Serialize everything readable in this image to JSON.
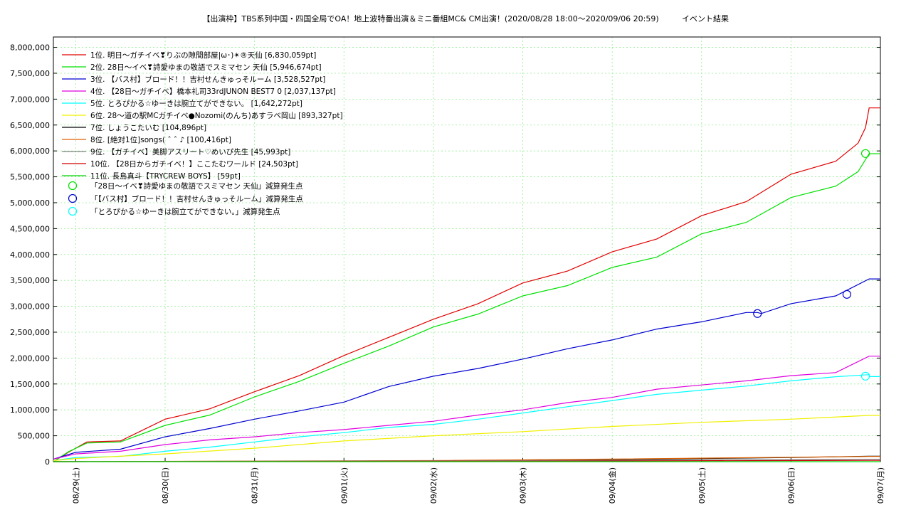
{
  "chart_data": {
    "type": "line",
    "title": "【出演枠】TBS系列中国・四国全局でOA！地上波特番出演＆ミニ番組MC& CM出演！(2020/08/28 18:00～2020/09/06 20:59)",
    "subtitle": "イベント結果",
    "xlabel": "",
    "ylabel": "",
    "ylim": [
      0,
      8200000
    ],
    "x_range": [
      "2020/08/28 18:00",
      "2020/09/07"
    ],
    "grid": true,
    "legend_position": "top-left",
    "y_ticks": [
      "0",
      "500,000",
      "1,000,000",
      "1,500,000",
      "2,000,000",
      "2,500,000",
      "3,000,000",
      "3,500,000",
      "4,000,000",
      "4,500,000",
      "5,000,000",
      "5,500,000",
      "6,000,000",
      "6,500,000",
      "7,000,000",
      "7,500,000",
      "8,000,000"
    ],
    "x_ticks": [
      "08/29(土)",
      "08/30(日)",
      "08/31(月)",
      "09/01(火)",
      "09/02(水)",
      "09/03(木)",
      "09/04(金)",
      "09/05(土)",
      "09/06(日)",
      "09/07(月)"
    ],
    "series": [
      {
        "name": "1位. 明日〜ガチイベ❣りぶの隙間部屋|ω･)✴®天仙 [6,830,059pt]",
        "color": "#e00000",
        "final": 6830059,
        "points": [
          [
            "2020/08/28 18:00",
            0
          ],
          [
            "2020/08/28 22:00",
            180000
          ],
          [
            "2020/08/29 03:00",
            380000
          ],
          [
            "2020/08/29 12:00",
            400000
          ],
          [
            "2020/08/30 00:00",
            820000
          ],
          [
            "2020/08/30 12:00",
            1020000
          ],
          [
            "2020/08/31 00:00",
            1350000
          ],
          [
            "2020/08/31 12:00",
            1660000
          ],
          [
            "2020/09/01 00:00",
            2050000
          ],
          [
            "2020/09/01 12:00",
            2400000
          ],
          [
            "2020/09/02 00:00",
            2750000
          ],
          [
            "2020/09/02 12:00",
            3050000
          ],
          [
            "2020/09/03 00:00",
            3450000
          ],
          [
            "2020/09/03 12:00",
            3680000
          ],
          [
            "2020/09/04 00:00",
            4050000
          ],
          [
            "2020/09/04 12:00",
            4300000
          ],
          [
            "2020/09/05 00:00",
            4750000
          ],
          [
            "2020/09/05 12:00",
            5020000
          ],
          [
            "2020/09/06 00:00",
            5550000
          ],
          [
            "2020/09/06 12:00",
            5800000
          ],
          [
            "2020/09/06 18:00",
            6150000
          ],
          [
            "2020/09/06 20:00",
            6450000
          ],
          [
            "2020/09/06 20:59",
            6830059
          ],
          [
            "2020/09/07 00:00",
            6830059
          ]
        ]
      },
      {
        "name": "2位. 28日〜イベ❣詩愛ゆまの敬語でスミマセン 天仙 [5,946,674pt]",
        "color": "#00e000",
        "final": 5946674,
        "points": [
          [
            "2020/08/28 18:00",
            0
          ],
          [
            "2020/08/28 22:00",
            190000
          ],
          [
            "2020/08/29 03:00",
            360000
          ],
          [
            "2020/08/29 12:00",
            380000
          ],
          [
            "2020/08/30 00:00",
            700000
          ],
          [
            "2020/08/30 12:00",
            900000
          ],
          [
            "2020/08/31 00:00",
            1250000
          ],
          [
            "2020/08/31 12:00",
            1550000
          ],
          [
            "2020/09/01 00:00",
            1900000
          ],
          [
            "2020/09/01 12:00",
            2230000
          ],
          [
            "2020/09/02 00:00",
            2600000
          ],
          [
            "2020/09/02 12:00",
            2850000
          ],
          [
            "2020/09/03 00:00",
            3200000
          ],
          [
            "2020/09/03 12:00",
            3400000
          ],
          [
            "2020/09/04 00:00",
            3750000
          ],
          [
            "2020/09/04 12:00",
            3950000
          ],
          [
            "2020/09/05 00:00",
            4400000
          ],
          [
            "2020/09/05 12:00",
            4620000
          ],
          [
            "2020/09/06 00:00",
            5100000
          ],
          [
            "2020/09/06 12:00",
            5320000
          ],
          [
            "2020/09/06 18:00",
            5600000
          ],
          [
            "2020/09/06 20:59",
            5946674
          ],
          [
            "2020/09/07 00:00",
            5946674
          ]
        ]
      },
      {
        "name": "3位. 【バス村】ブロード！！吉村せんきゅっそルーム [3,528,527pt]",
        "color": "#0000d0",
        "final": 3528527,
        "points": [
          [
            "2020/08/28 18:00",
            50000
          ],
          [
            "2020/08/29 00:00",
            180000
          ],
          [
            "2020/08/29 12:00",
            240000
          ],
          [
            "2020/08/30 00:00",
            480000
          ],
          [
            "2020/08/30 12:00",
            640000
          ],
          [
            "2020/08/31 00:00",
            820000
          ],
          [
            "2020/08/31 12:00",
            980000
          ],
          [
            "2020/09/01 00:00",
            1150000
          ],
          [
            "2020/09/01 12:00",
            1450000
          ],
          [
            "2020/09/02 00:00",
            1650000
          ],
          [
            "2020/09/02 12:00",
            1800000
          ],
          [
            "2020/09/03 00:00",
            1980000
          ],
          [
            "2020/09/03 12:00",
            2180000
          ],
          [
            "2020/09/04 00:00",
            2350000
          ],
          [
            "2020/09/04 12:00",
            2560000
          ],
          [
            "2020/09/05 00:00",
            2700000
          ],
          [
            "2020/09/05 12:00",
            2880000
          ],
          [
            "2020/09/05 15:00",
            2880000
          ],
          [
            "2020/09/05 16:00",
            2860000
          ],
          [
            "2020/09/06 00:00",
            3050000
          ],
          [
            "2020/09/06 12:00",
            3200000
          ],
          [
            "2020/09/06 20:59",
            3528527
          ],
          [
            "2020/09/07 00:00",
            3528527
          ]
        ]
      },
      {
        "name": "4位. 【28日〜ガチイベ】橋本礼司33rdJUNON BEST7 0 [2,037,137pt]",
        "color": "#e000e0",
        "final": 2037137,
        "points": [
          [
            "2020/08/28 18:00",
            50000
          ],
          [
            "2020/08/29 00:00",
            150000
          ],
          [
            "2020/08/29 12:00",
            200000
          ],
          [
            "2020/08/30 00:00",
            330000
          ],
          [
            "2020/08/30 12:00",
            420000
          ],
          [
            "2020/08/31 00:00",
            480000
          ],
          [
            "2020/08/31 12:00",
            560000
          ],
          [
            "2020/09/01 00:00",
            620000
          ],
          [
            "2020/09/01 12:00",
            700000
          ],
          [
            "2020/09/02 00:00",
            780000
          ],
          [
            "2020/09/02 12:00",
            900000
          ],
          [
            "2020/09/03 00:00",
            1000000
          ],
          [
            "2020/09/03 12:00",
            1140000
          ],
          [
            "2020/09/04 00:00",
            1240000
          ],
          [
            "2020/09/04 12:00",
            1400000
          ],
          [
            "2020/09/05 00:00",
            1480000
          ],
          [
            "2020/09/05 12:00",
            1560000
          ],
          [
            "2020/09/06 00:00",
            1660000
          ],
          [
            "2020/09/06 12:00",
            1720000
          ],
          [
            "2020/09/06 20:59",
            2037137
          ],
          [
            "2020/09/07 00:00",
            2037137
          ]
        ]
      },
      {
        "name": "5位. とろぴかる☆ゆーきは腕立てができない。 [1,642,272pt]",
        "color": "#00ffff",
        "final": 1642272,
        "points": [
          [
            "2020/08/28 18:00",
            20000
          ],
          [
            "2020/08/29 00:00",
            80000
          ],
          [
            "2020/08/29 12:00",
            100000
          ],
          [
            "2020/08/30 00:00",
            200000
          ],
          [
            "2020/08/30 12:00",
            280000
          ],
          [
            "2020/08/31 00:00",
            380000
          ],
          [
            "2020/08/31 12:00",
            480000
          ],
          [
            "2020/09/01 00:00",
            560000
          ],
          [
            "2020/09/01 12:00",
            660000
          ],
          [
            "2020/09/02 00:00",
            720000
          ],
          [
            "2020/09/02 12:00",
            820000
          ],
          [
            "2020/09/03 00:00",
            940000
          ],
          [
            "2020/09/03 12:00",
            1060000
          ],
          [
            "2020/09/04 00:00",
            1180000
          ],
          [
            "2020/09/04 12:00",
            1300000
          ],
          [
            "2020/09/05 00:00",
            1380000
          ],
          [
            "2020/09/05 12:00",
            1460000
          ],
          [
            "2020/09/06 00:00",
            1560000
          ],
          [
            "2020/09/06 12:00",
            1640000
          ],
          [
            "2020/09/06 20:59",
            1680000
          ],
          [
            "2020/09/06 21:00",
            1642272
          ],
          [
            "2020/09/07 00:00",
            1642272
          ]
        ]
      },
      {
        "name": "6位. 28〜道の駅MCガチイベ●Nozomi(のんち)あすラベ岡山 [893,327pt]",
        "color": "#f0f000",
        "final": 893327,
        "points": [
          [
            "2020/08/28 18:00",
            20000
          ],
          [
            "2020/08/29 00:00",
            60000
          ],
          [
            "2020/08/30 00:00",
            150000
          ],
          [
            "2020/08/31 00:00",
            260000
          ],
          [
            "2020/09/01 00:00",
            400000
          ],
          [
            "2020/09/02 00:00",
            500000
          ],
          [
            "2020/09/03 00:00",
            580000
          ],
          [
            "2020/09/04 00:00",
            680000
          ],
          [
            "2020/09/05 00:00",
            760000
          ],
          [
            "2020/09/06 00:00",
            820000
          ],
          [
            "2020/09/06 20:59",
            893327
          ],
          [
            "2020/09/07 00:00",
            893327
          ]
        ]
      },
      {
        "name": "7位. しょうこたいむ [104,896pt]",
        "color": "#000000",
        "final": 104896,
        "points": [
          [
            "2020/08/28 18:00",
            0
          ],
          [
            "2020/09/02 00:00",
            10000
          ],
          [
            "2020/09/04 00:00",
            40000
          ],
          [
            "2020/09/06 00:00",
            80000
          ],
          [
            "2020/09/06 20:59",
            104896
          ],
          [
            "2020/09/07 00:00",
            104896
          ]
        ]
      },
      {
        "name": "8位. [絶対1位]songs( ˆ ˆ ♪ [100,416pt]",
        "color": "#e06000",
        "final": 100416,
        "points": [
          [
            "2020/08/28 18:00",
            0
          ],
          [
            "2020/09/02 00:00",
            20000
          ],
          [
            "2020/09/04 00:00",
            50000
          ],
          [
            "2020/09/06 00:00",
            85000
          ],
          [
            "2020/09/06 20:59",
            100416
          ],
          [
            "2020/09/07 00:00",
            100416
          ]
        ]
      },
      {
        "name": "9位. 【ガチイベ】美脚アスリート♡めいぴ先生 [45,993pt]",
        "color": "#808080",
        "final": 45993,
        "points": [
          [
            "2020/08/28 18:00",
            0
          ],
          [
            "2020/09/02 00:00",
            15000
          ],
          [
            "2020/09/06 20:59",
            45993
          ],
          [
            "2020/09/07 00:00",
            45993
          ]
        ]
      },
      {
        "name": "10位. 【28日からガチイベ！】ここたむワールド [24,503pt]",
        "color": "#d00000",
        "final": 24503,
        "points": [
          [
            "2020/08/28 18:00",
            0
          ],
          [
            "2020/09/03 00:00",
            10000
          ],
          [
            "2020/09/06 20:59",
            24503
          ],
          [
            "2020/09/07 00:00",
            24503
          ]
        ]
      },
      {
        "name": "11位. 長島真斗【TRYCREW BOYS】 [59pt]",
        "color": "#00d000",
        "final": 59,
        "points": [
          [
            "2020/08/28 18:00",
            0
          ],
          [
            "2020/09/07 00:00",
            59
          ]
        ]
      }
    ],
    "markers": [
      {
        "name": "「28日〜イベ❣詩愛ゆまの敬語でスミマセン 天仙」減算発生点",
        "color": "#00e000",
        "points": [
          [
            "2020/09/06 20:00",
            5950000
          ]
        ]
      },
      {
        "name": "「【バス村】ブロード！！吉村せんきゅっそルーム」減算発生点",
        "color": "#0000d0",
        "points": [
          [
            "2020/09/05 15:00",
            2860000
          ],
          [
            "2020/09/06 15:00",
            3230000
          ]
        ]
      },
      {
        "name": "「とろぴかる☆ゆーきは腕立てができない。」減算発生点",
        "color": "#00ffff",
        "points": [
          [
            "2020/09/06 20:00",
            1650000
          ]
        ]
      }
    ]
  }
}
